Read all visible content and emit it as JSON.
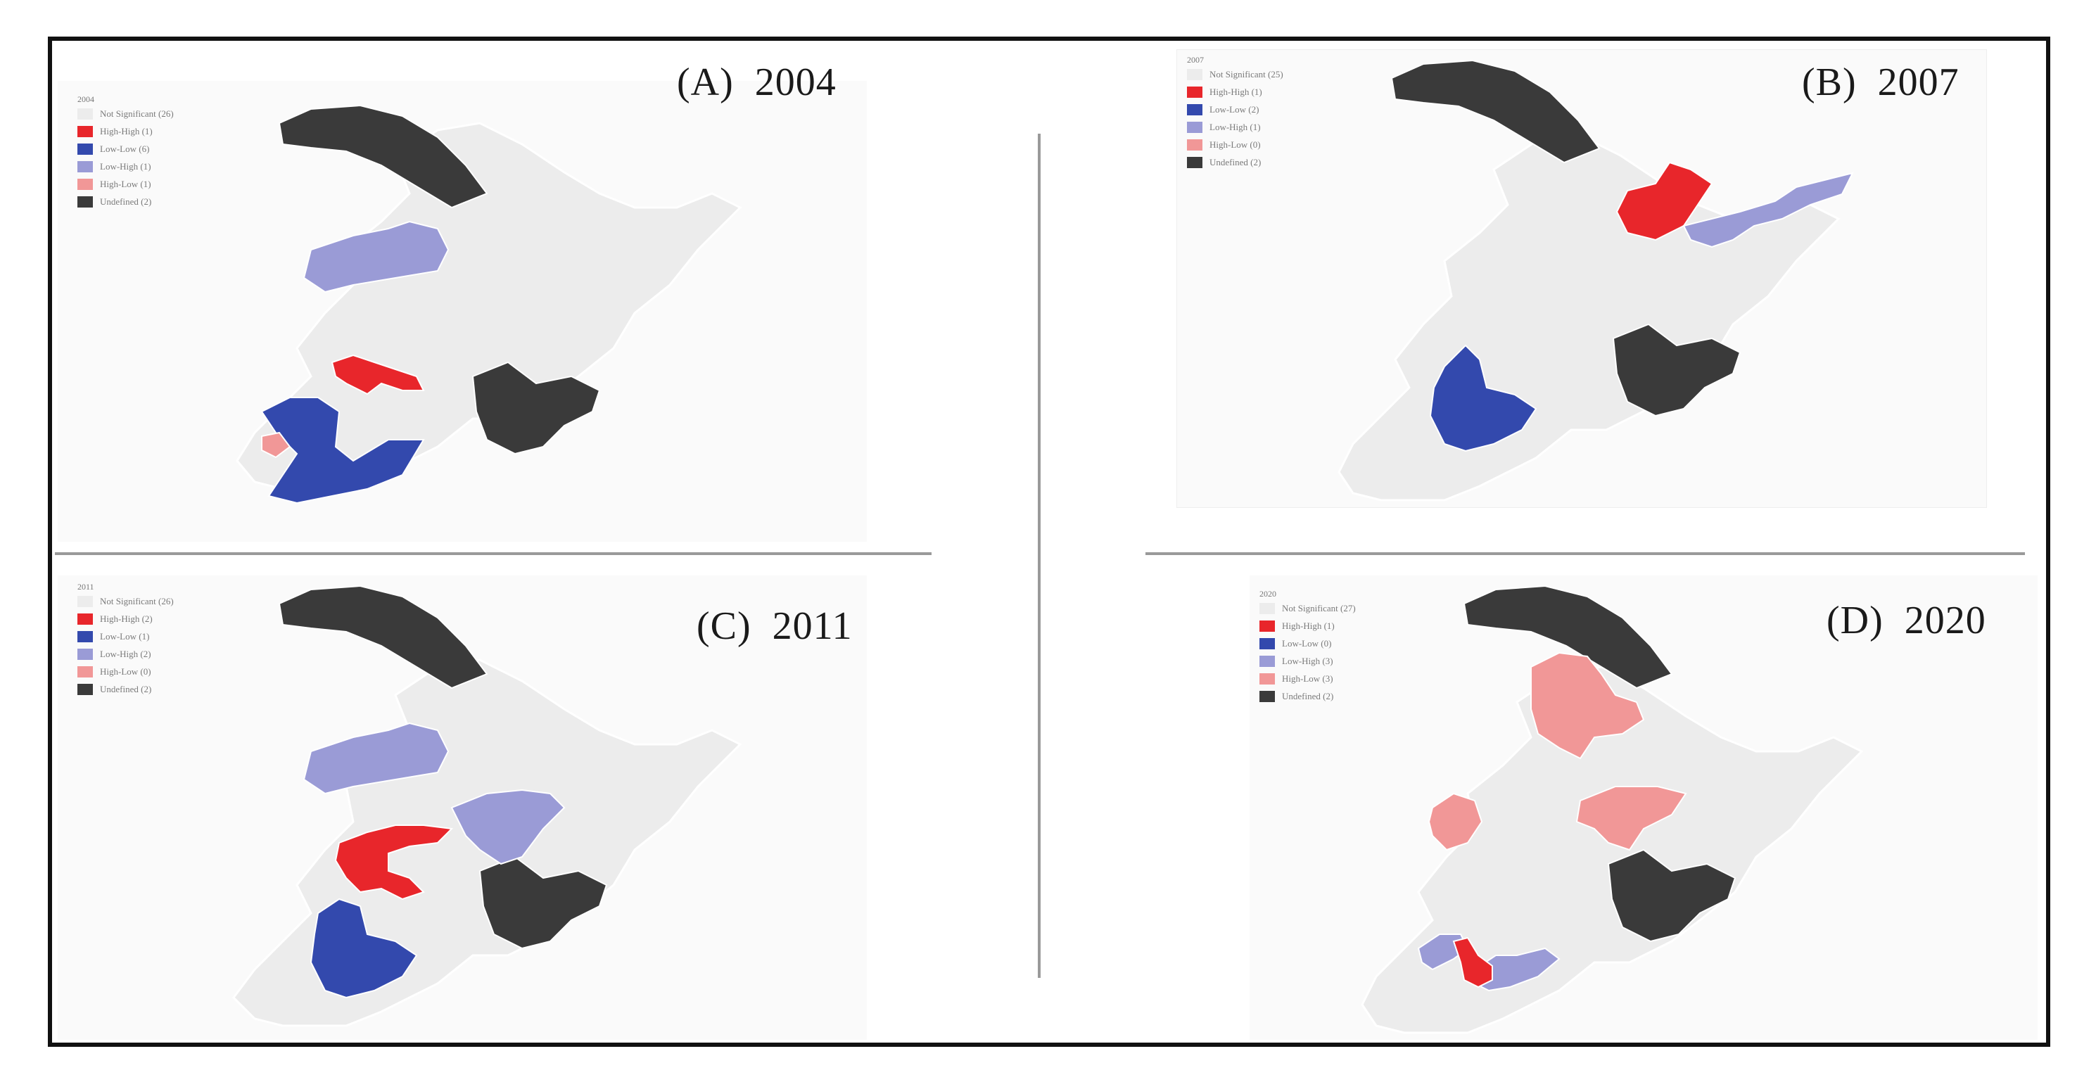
{
  "colors": {
    "not_significant": "#ececec",
    "high_high": "#e8262b",
    "low_low": "#3349ad",
    "low_high": "#9a9bd6",
    "high_low": "#f19797",
    "undefined": "#3a3a3a",
    "boundary": "#ffffff"
  },
  "panels": [
    {
      "title": "(A)  2004",
      "legend": {
        "year": "2004",
        "items": [
          {
            "label": "Not Significant (26)",
            "class": "not_significant"
          },
          {
            "label": "High-High (1)",
            "class": "high_high"
          },
          {
            "label": "Low-Low (6)",
            "class": "low_low"
          },
          {
            "label": "Low-High (1)",
            "class": "low_high"
          },
          {
            "label": "High-Low (1)",
            "class": "high_low"
          },
          {
            "label": "Undefined (2)",
            "class": "undefined"
          }
        ]
      }
    },
    {
      "title": "(B)  2007",
      "legend": {
        "year": "2007",
        "items": [
          {
            "label": "Not Significant (25)",
            "class": "not_significant"
          },
          {
            "label": "High-High (1)",
            "class": "high_high"
          },
          {
            "label": "Low-Low (2)",
            "class": "low_low"
          },
          {
            "label": "Low-High (1)",
            "class": "low_high"
          },
          {
            "label": "High-Low (0)",
            "class": "high_low"
          },
          {
            "label": "Undefined (2)",
            "class": "undefined"
          }
        ]
      }
    },
    {
      "title": "(C)  2011",
      "legend": {
        "year": "2011",
        "items": [
          {
            "label": "Not Significant (26)",
            "class": "not_significant"
          },
          {
            "label": "High-High (2)",
            "class": "high_high"
          },
          {
            "label": "Low-Low (1)",
            "class": "low_low"
          },
          {
            "label": "Low-High (2)",
            "class": "low_high"
          },
          {
            "label": "High-Low (0)",
            "class": "high_low"
          },
          {
            "label": "Undefined (2)",
            "class": "undefined"
          }
        ]
      }
    },
    {
      "title": "(D)  2020",
      "legend": {
        "year": "2020",
        "items": [
          {
            "label": "Not Significant (27)",
            "class": "not_significant"
          },
          {
            "label": "High-High (1)",
            "class": "high_high"
          },
          {
            "label": "Low-Low (0)",
            "class": "low_low"
          },
          {
            "label": "Low-High (3)",
            "class": "low_high"
          },
          {
            "label": "High-Low (3)",
            "class": "high_low"
          },
          {
            "label": "Undefined (2)",
            "class": "undefined"
          }
        ]
      }
    }
  ]
}
